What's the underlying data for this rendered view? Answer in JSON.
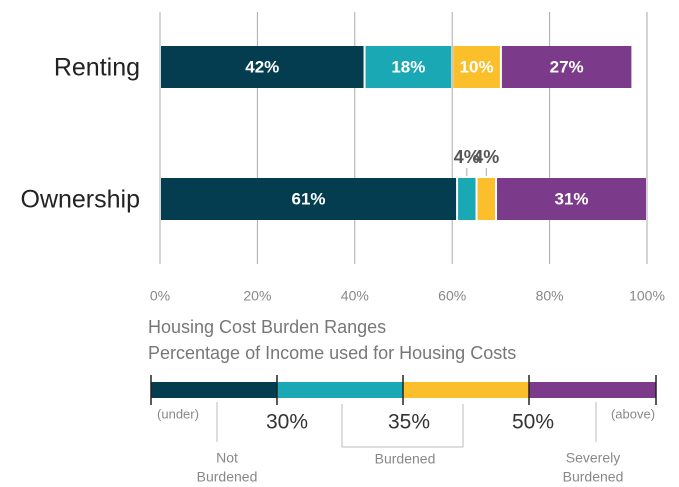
{
  "chart_data": {
    "type": "stacked-bar-horizontal",
    "categories": [
      "Renting",
      "Ownership"
    ],
    "series": [
      {
        "color": "#033d4f",
        "values": [
          42,
          61
        ],
        "value_labels": [
          "42%",
          "61%"
        ]
      },
      {
        "color": "#1ba8b5",
        "values": [
          18,
          4
        ],
        "value_labels": [
          "18%",
          "4%"
        ]
      },
      {
        "color": "#fbbf2b",
        "values": [
          10,
          4
        ],
        "value_labels": [
          "10%",
          "4%"
        ]
      },
      {
        "color": "#7b3a8a",
        "values": [
          27,
          31
        ],
        "value_labels": [
          "27%",
          "31%"
        ]
      }
    ],
    "xlim": [
      0,
      100
    ],
    "xticks": [
      {
        "value": 0,
        "label": "0%"
      },
      {
        "value": 20,
        "label": "20%"
      },
      {
        "value": 40,
        "label": "40%"
      },
      {
        "value": 60,
        "label": "60%"
      },
      {
        "value": 80,
        "label": "80%"
      },
      {
        "value": 100,
        "label": "100%"
      }
    ],
    "grid": true,
    "legend_scale": {
      "title": "Housing Cost Burden Ranges",
      "subtitle": "Percentage of Income used for Housing Costs",
      "labels": [
        "(under)",
        "30%",
        "35%",
        "50%",
        "(above)"
      ],
      "groups": [
        {
          "lines": [
            "Not",
            "Burdened"
          ]
        },
        {
          "lines": [
            "Burdened"
          ]
        },
        {
          "lines": [
            "Severely",
            "Burdened"
          ]
        }
      ]
    }
  }
}
